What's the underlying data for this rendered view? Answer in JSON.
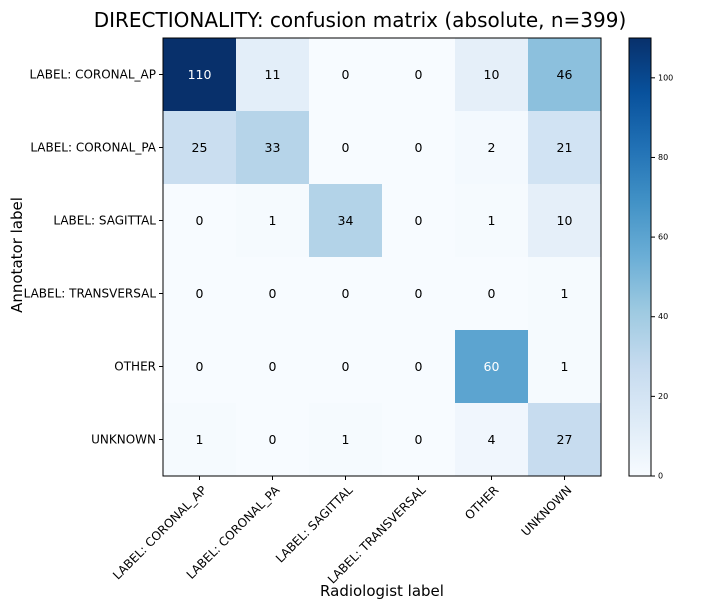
{
  "chart_data": {
    "type": "heatmap",
    "title": "DIRECTIONALITY: confusion matrix (absolute, n=399)",
    "xlabel": "Radiologist label",
    "ylabel": "Annotator label",
    "x_categories": [
      "LABEL: CORONAL_AP",
      "LABEL: CORONAL_PA",
      "LABEL: SAGITTAL",
      "LABEL: TRANSVERSAL",
      "OTHER",
      "UNKNOWN"
    ],
    "y_categories": [
      "LABEL: CORONAL_AP",
      "LABEL: CORONAL_PA",
      "LABEL: SAGITTAL",
      "LABEL: TRANSVERSAL",
      "OTHER",
      "UNKNOWN"
    ],
    "values": [
      [
        110,
        11,
        0,
        0,
        10,
        46
      ],
      [
        25,
        33,
        0,
        0,
        2,
        21
      ],
      [
        0,
        1,
        34,
        0,
        1,
        10
      ],
      [
        0,
        0,
        0,
        0,
        0,
        1
      ],
      [
        0,
        0,
        0,
        0,
        60,
        1
      ],
      [
        1,
        0,
        1,
        0,
        4,
        27
      ]
    ],
    "colormap": "Blues",
    "value_range": [
      0,
      110
    ],
    "colorbar": {
      "ticks": [
        0,
        20,
        40,
        60,
        80,
        100
      ]
    },
    "colors": {
      "text_dark": "#000000",
      "text_light": "#ffffff",
      "frame": "#000000"
    }
  }
}
